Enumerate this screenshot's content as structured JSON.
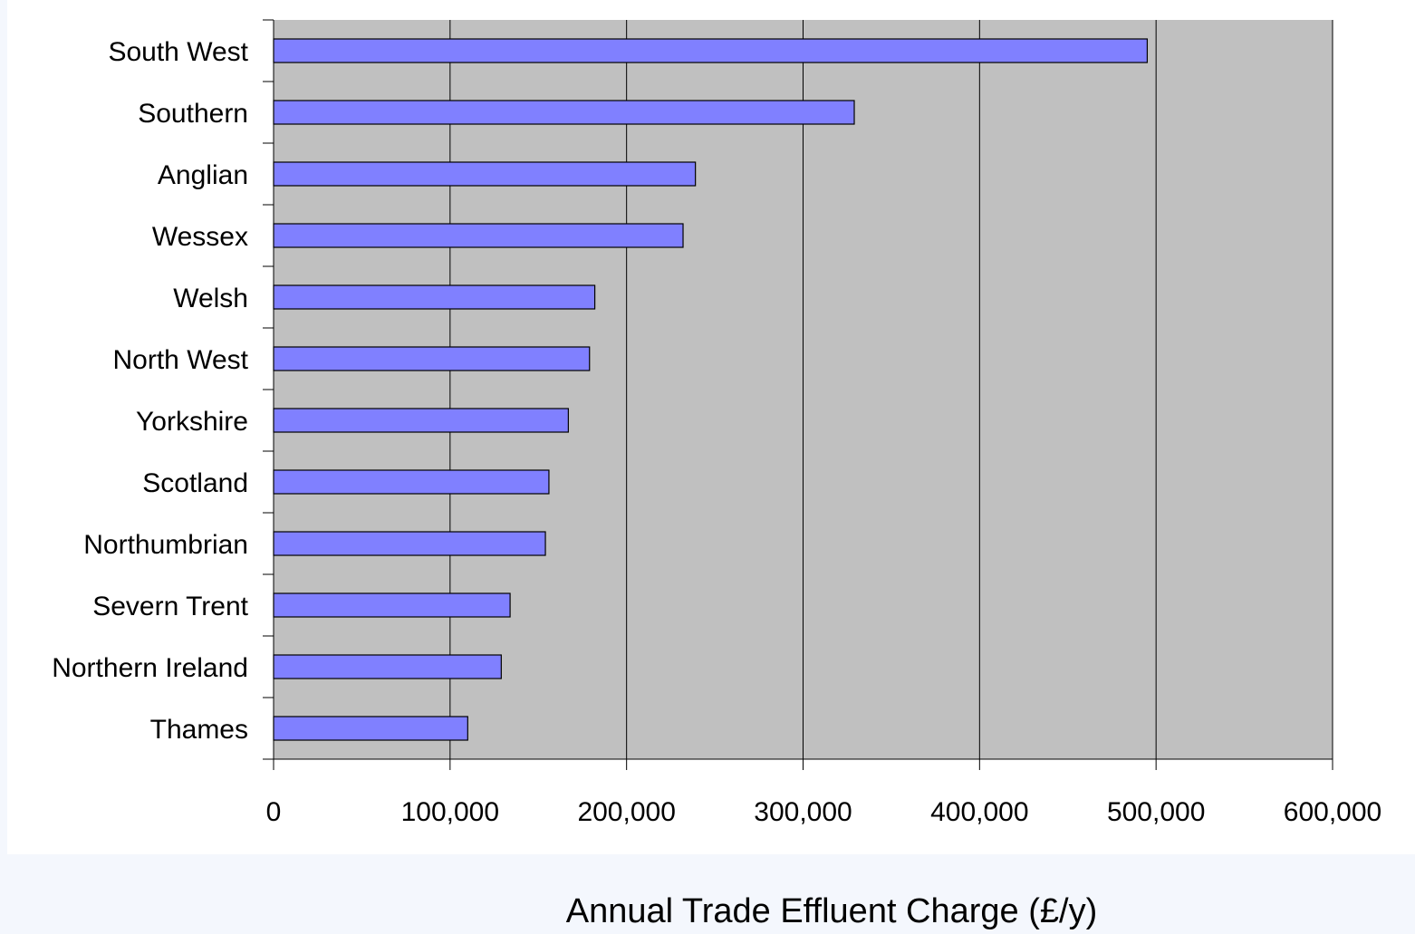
{
  "colors": {
    "plot_background": "#c0c0c0",
    "bar_fill": "#8080ff",
    "bar_stroke": "#000000",
    "gridline": "#000000",
    "page_background": "#f4f7fd",
    "chart_background": "#ffffff"
  },
  "chart_data": {
    "type": "bar",
    "orientation": "horizontal",
    "title": "",
    "xlabel": "Annual Trade Effluent Charge (£/y)",
    "ylabel": "",
    "xlim": [
      0,
      600000
    ],
    "x_ticks": [
      0,
      100000,
      200000,
      300000,
      400000,
      500000,
      600000
    ],
    "x_tick_labels": [
      "0",
      "100,000",
      "200,000",
      "300,000",
      "400,000",
      "500,000",
      "600,000"
    ],
    "grid": "vertical major gridlines",
    "legend": "none",
    "categories": [
      "South West",
      "Southern",
      "Anglian",
      "Wessex",
      "Welsh",
      "North West",
      "Yorkshire",
      "Scotland",
      "Northumbrian",
      "Severn Trent",
      "Northern Ireland",
      "Thames"
    ],
    "values": [
      495000,
      329000,
      239000,
      232000,
      182000,
      179000,
      167000,
      156000,
      154000,
      134000,
      129000,
      110000
    ]
  }
}
